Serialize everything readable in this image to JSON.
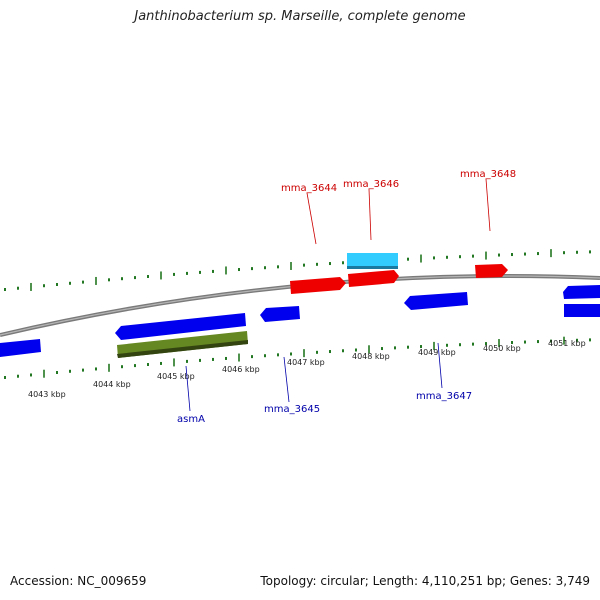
{
  "title": "Janthinobacterium sp. Marseille, complete genome",
  "footer": {
    "accession": "Accession: NC_009659",
    "summary": "Topology: circular; Length: 4,110,251 bp; Genes: 3,749"
  },
  "colors": {
    "forward_cds": "#ff0000",
    "reverse_cds": "#0000ee",
    "rna": "#33ccff",
    "other": "#668822",
    "backbone": "#888888",
    "ticks": "#227722",
    "label_top": "#cc0000",
    "label_bottom": "#0000aa"
  },
  "scale_labels": [
    "4043 kbp",
    "4044 kbp",
    "4045 kbp",
    "4046 kbp",
    "4047 kbp",
    "4048 kbp",
    "4049 kbp",
    "4050 kbp",
    "4051 kbp"
  ],
  "gene_labels_top": [
    "mma_3644",
    "mma_3646",
    "mma_3648"
  ],
  "gene_labels_bottom": [
    "asmA",
    "mma_3645",
    "mma_3647"
  ]
}
